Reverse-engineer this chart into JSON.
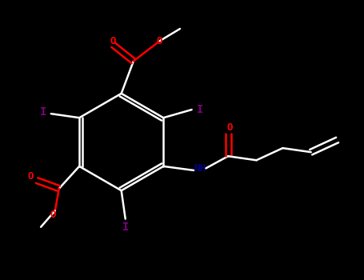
{
  "bg_color": "#000000",
  "bond_color": "#ffffff",
  "fig_width": 4.55,
  "fig_height": 3.5,
  "dpi": 100,
  "atom_colors": {
    "I": "#800080",
    "O": "#ff0000",
    "N": "#00008B",
    "C": "#ffffff"
  },
  "lw": 1.8,
  "font_size": 9
}
